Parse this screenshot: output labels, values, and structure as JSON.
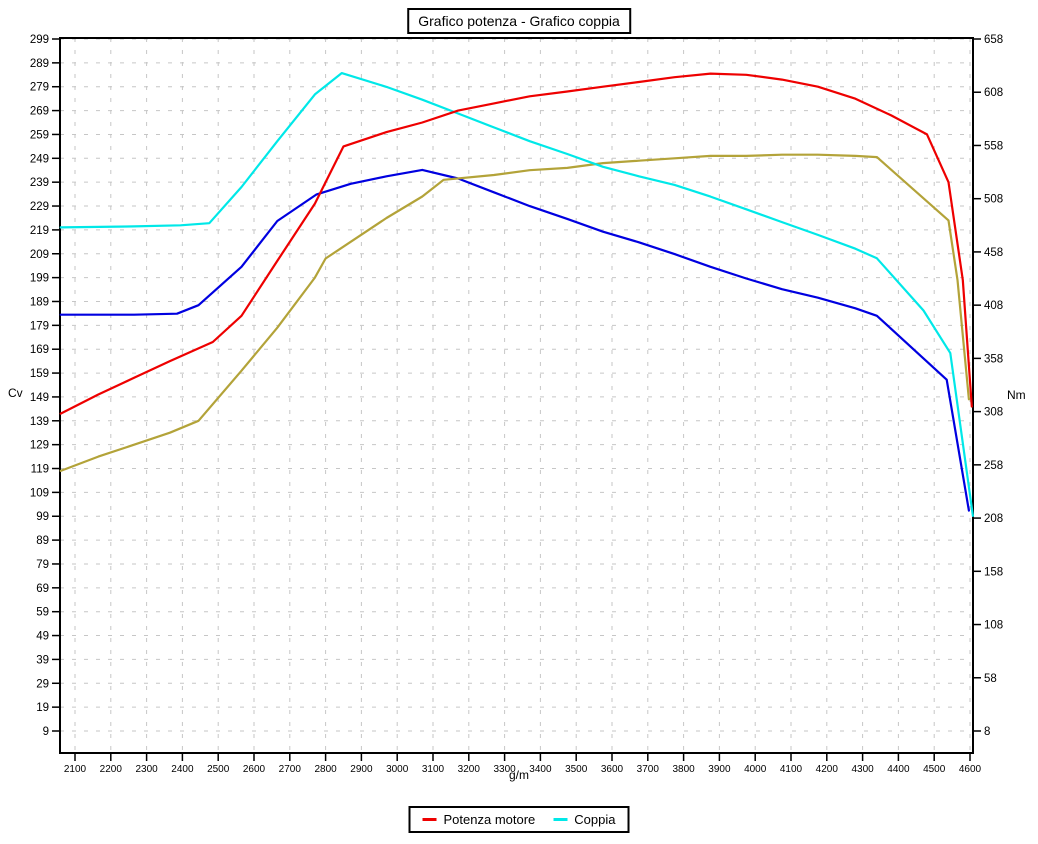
{
  "title": "Grafico potenza - Grafico coppia",
  "axes": {
    "x": {
      "label": "g/m",
      "ticks": [
        2100,
        2200,
        2300,
        2400,
        2500,
        2600,
        2700,
        2800,
        2900,
        3000,
        3100,
        3200,
        3300,
        3400,
        3500,
        3600,
        3700,
        3800,
        3900,
        4000,
        4100,
        4200,
        4300,
        4400,
        4500,
        4600
      ]
    },
    "y_left": {
      "label": "Cv",
      "ticks": [
        299,
        289,
        279,
        269,
        259,
        249,
        239,
        229,
        219,
        209,
        199,
        189,
        179,
        169,
        159,
        149,
        139,
        129,
        119,
        109,
        99,
        89,
        79,
        69,
        59,
        49,
        39,
        29,
        19,
        9
      ]
    },
    "y_right": {
      "label": "Nm",
      "ticks": [
        658,
        608,
        558,
        508,
        458,
        408,
        358,
        308,
        258,
        208,
        158,
        108,
        58,
        8
      ]
    }
  },
  "legend": [
    {
      "label": "Potenza motore",
      "color": "#ee0000"
    },
    {
      "label": "Coppia",
      "color": "#00e8e8"
    }
  ],
  "colors": {
    "grid": "#c6c6c6",
    "axis": "#000000",
    "background": "#ffffff"
  },
  "chart_data": {
    "type": "line",
    "title": "Grafico potenza - Grafico coppia",
    "xlabel": "g/m",
    "ylabel_left": "Cv",
    "ylabel_right": "Nm",
    "x_range": [
      2060,
      4610
    ],
    "y_left_range": [
      9,
      299
    ],
    "y_right_range": [
      8,
      658
    ],
    "grid": "dashed",
    "legend_position": "bottom-center",
    "series": [
      {
        "id": "curve-blue",
        "legend_label": null,
        "color": "#0000e0",
        "axis": "right",
        "unit": "Nm",
        "points": [
          [
            2060,
            399
          ],
          [
            2265,
            399
          ],
          [
            2385,
            400
          ],
          [
            2445,
            408
          ],
          [
            2565,
            444
          ],
          [
            2665,
            487
          ],
          [
            2775,
            512
          ],
          [
            2870,
            522
          ],
          [
            2970,
            529
          ],
          [
            3070,
            535
          ],
          [
            3170,
            527
          ],
          [
            3270,
            514
          ],
          [
            3370,
            501
          ],
          [
            3475,
            489
          ],
          [
            3575,
            477
          ],
          [
            3675,
            467
          ],
          [
            3775,
            456
          ],
          [
            3875,
            444
          ],
          [
            3975,
            433
          ],
          [
            4075,
            423
          ],
          [
            4175,
            415
          ],
          [
            4280,
            405
          ],
          [
            4340,
            398
          ],
          [
            4535,
            338
          ],
          [
            4597,
            215
          ]
        ]
      },
      {
        "id": "curve-olive",
        "legend_label": null,
        "color": "#b3a339",
        "axis": "left",
        "unit": "Cv",
        "points": [
          [
            2060,
            118
          ],
          [
            2165,
            124
          ],
          [
            2265,
            129
          ],
          [
            2365,
            134
          ],
          [
            2445,
            139
          ],
          [
            2565,
            160
          ],
          [
            2665,
            178
          ],
          [
            2770,
            199
          ],
          [
            2800,
            207
          ],
          [
            2870,
            214
          ],
          [
            2970,
            224
          ],
          [
            3070,
            233
          ],
          [
            3130,
            240
          ],
          [
            3270,
            242
          ],
          [
            3370,
            244
          ],
          [
            3475,
            245
          ],
          [
            3575,
            247
          ],
          [
            3675,
            248
          ],
          [
            3775,
            249
          ],
          [
            3875,
            250
          ],
          [
            3975,
            250
          ],
          [
            4075,
            250.5
          ],
          [
            4175,
            250.5
          ],
          [
            4280,
            250
          ],
          [
            4340,
            249.5
          ],
          [
            4540,
            223
          ],
          [
            4565,
            198
          ],
          [
            4597,
            148
          ]
        ]
      },
      {
        "id": "curve-cyan",
        "legend_label": "Coppia",
        "color": "#00e8e8",
        "axis": "right",
        "unit": "Nm",
        "points": [
          [
            2060,
            481
          ],
          [
            2265,
            482
          ],
          [
            2395,
            483
          ],
          [
            2475,
            485
          ],
          [
            2565,
            519
          ],
          [
            2665,
            562
          ],
          [
            2770,
            606
          ],
          [
            2845,
            626
          ],
          [
            2970,
            613
          ],
          [
            3070,
            601
          ],
          [
            3170,
            588
          ],
          [
            3270,
            575
          ],
          [
            3370,
            562
          ],
          [
            3475,
            550
          ],
          [
            3575,
            538
          ],
          [
            3675,
            529
          ],
          [
            3775,
            521
          ],
          [
            3875,
            510
          ],
          [
            3975,
            498
          ],
          [
            4075,
            486
          ],
          [
            4175,
            474
          ],
          [
            4280,
            461
          ],
          [
            4340,
            452
          ],
          [
            4470,
            403
          ],
          [
            4545,
            363
          ],
          [
            4608,
            210
          ]
        ]
      },
      {
        "id": "curve-red",
        "legend_label": "Potenza motore",
        "color": "#ee0000",
        "axis": "left",
        "unit": "Cv",
        "points": [
          [
            2060,
            142
          ],
          [
            2165,
            150
          ],
          [
            2265,
            157
          ],
          [
            2365,
            164
          ],
          [
            2485,
            172
          ],
          [
            2565,
            183
          ],
          [
            2665,
            206
          ],
          [
            2770,
            230
          ],
          [
            2850,
            254
          ],
          [
            2970,
            260
          ],
          [
            3070,
            264
          ],
          [
            3170,
            269
          ],
          [
            3270,
            272
          ],
          [
            3370,
            275
          ],
          [
            3475,
            277
          ],
          [
            3575,
            279
          ],
          [
            3675,
            281
          ],
          [
            3775,
            283
          ],
          [
            3875,
            284.5
          ],
          [
            3975,
            284
          ],
          [
            4075,
            282
          ],
          [
            4175,
            279
          ],
          [
            4280,
            274
          ],
          [
            4380,
            267
          ],
          [
            4480,
            259
          ],
          [
            4540,
            239
          ],
          [
            4580,
            198
          ],
          [
            4605,
            145
          ]
        ]
      }
    ]
  }
}
